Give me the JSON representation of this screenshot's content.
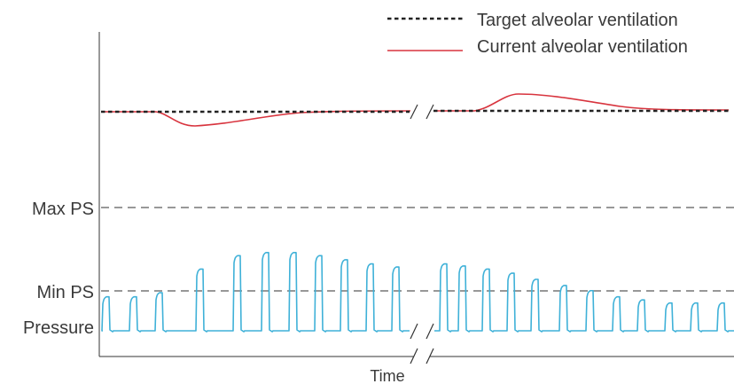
{
  "legend": {
    "target_label": "Target alveolar ventilation",
    "current_label": "Current alveolar ventilation"
  },
  "axis": {
    "x_label": "Time"
  },
  "levels": {
    "max_ps_label": "Max PS",
    "min_ps_label": "Min PS",
    "pressure_label": "Pressure"
  },
  "colors": {
    "target": "#222222",
    "current": "#d8343e",
    "pressure": "#3fb1d8",
    "reference": "#777777",
    "axis": "#333333"
  },
  "diagram": {
    "time_break": true,
    "pressure_peaks_relative": {
      "before_break": [
        0.33,
        0.33,
        0.37,
        0.6,
        0.73,
        0.76,
        0.76,
        0.73,
        0.69,
        0.65,
        0.62
      ],
      "after_break": [
        0.65,
        0.63,
        0.6,
        0.56,
        0.5,
        0.44,
        0.39,
        0.33,
        0.3,
        0.27,
        0.27,
        0.27
      ]
    }
  }
}
